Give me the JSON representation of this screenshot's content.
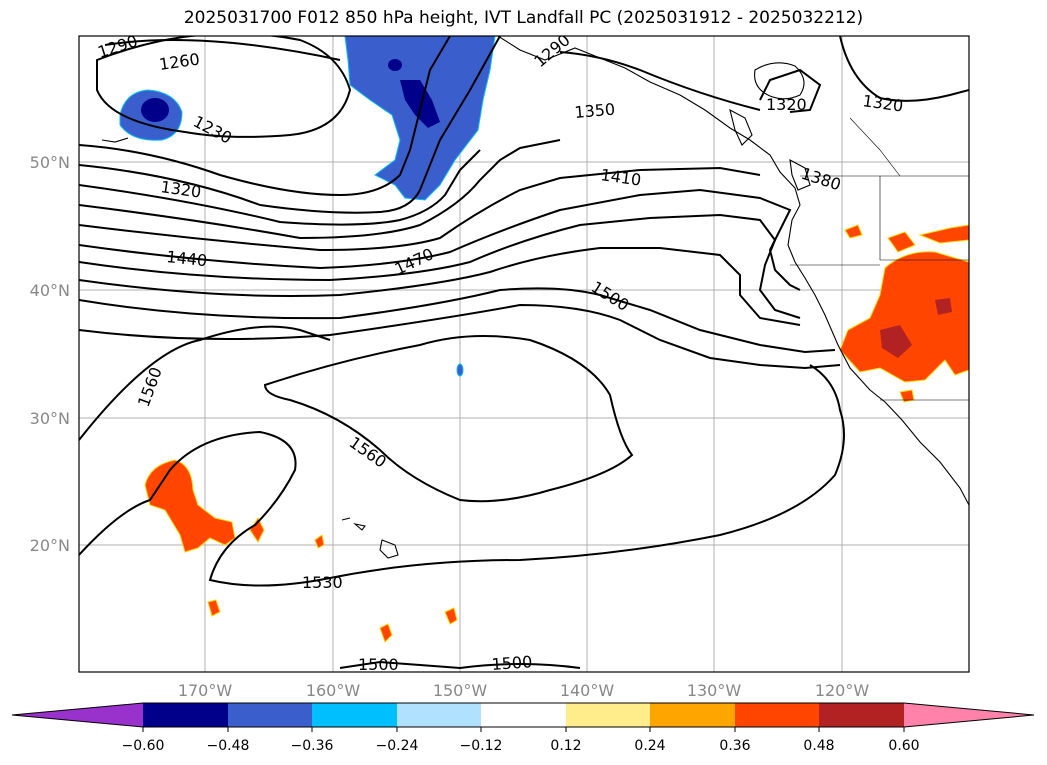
{
  "title": "2025031700 F012 850 hPa height, IVT Landfall PC (2025031912 - 2025032212)",
  "map": {
    "lon_ticks": [
      "170°W",
      "160°W",
      "150°W",
      "140°W",
      "130°W",
      "120°W"
    ],
    "lat_ticks": [
      "50°N",
      "40°N",
      "30°N",
      "20°N"
    ],
    "contour_labels": [
      "1290",
      "1260",
      "1230",
      "1320",
      "1440",
      "1470",
      "1500",
      "1560",
      "1560",
      "1530",
      "1500",
      "1500",
      "1290",
      "1350",
      "1410",
      "1380",
      "1320",
      "1320"
    ]
  },
  "colorbar": {
    "ticks": [
      "−0.60",
      "−0.48",
      "−0.36",
      "−0.24",
      "−0.12",
      "0.12",
      "0.24",
      "0.36",
      "0.48",
      "0.60"
    ],
    "colors": [
      "#9932cc",
      "#00008b",
      "#3a5fcd",
      "#00bfff",
      "#b0e2ff",
      "#ffffff",
      "#ffec8b",
      "#ffa500",
      "#ff4500",
      "#b22222",
      "#ff82ab"
    ]
  }
}
